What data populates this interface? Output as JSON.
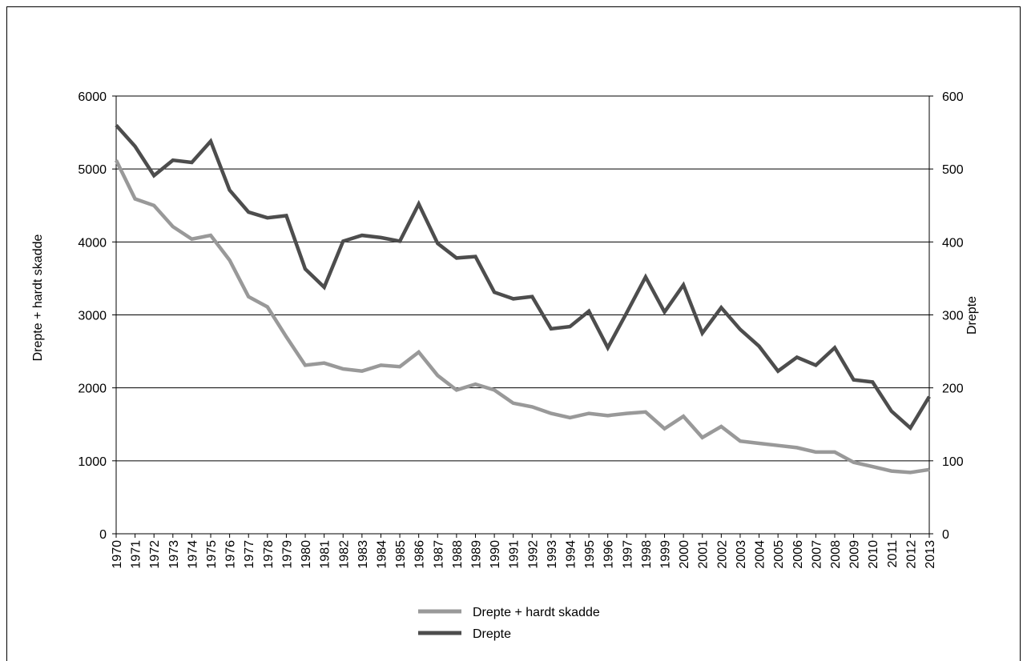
{
  "chart_data": {
    "type": "line",
    "x": [
      "1970",
      "1971",
      "1972",
      "1973",
      "1974",
      "1975",
      "1976",
      "1977",
      "1978",
      "1979",
      "1980",
      "1981",
      "1982",
      "1983",
      "1984",
      "1985",
      "1986",
      "1987",
      "1988",
      "1989",
      "1990",
      "1991",
      "1992",
      "1993",
      "1994",
      "1995",
      "1996",
      "1997",
      "1998",
      "1999",
      "2000",
      "2001",
      "2002",
      "2003",
      "2004",
      "2005",
      "2006",
      "2007",
      "2008",
      "2009",
      "2010",
      "2011",
      "2012",
      "2013"
    ],
    "series": [
      {
        "name": "Drepte + hardt skadde",
        "axis": "left",
        "color": "#999999",
        "values": [
          5120,
          4590,
          4500,
          4210,
          4040,
          4090,
          3750,
          3250,
          3110,
          2700,
          2310,
          2340,
          2260,
          2230,
          2310,
          2290,
          2490,
          2170,
          1970,
          2050,
          1970,
          1790,
          1740,
          1650,
          1590,
          1650,
          1620,
          1650,
          1670,
          1440,
          1610,
          1320,
          1470,
          1270,
          1240,
          1210,
          1180,
          1120,
          1120,
          980,
          920,
          860,
          840,
          880
        ]
      },
      {
        "name": "Drepte",
        "axis": "right",
        "color": "#4d4d4d",
        "values": [
          560,
          531,
          491,
          512,
          509,
          538,
          471,
          441,
          433,
          436,
          363,
          338,
          401,
          409,
          406,
          401,
          452,
          398,
          378,
          380,
          331,
          322,
          325,
          281,
          284,
          305,
          255,
          303,
          352,
          304,
          341,
          275,
          310,
          280,
          257,
          223,
          242,
          231,
          255,
          211,
          208,
          168,
          145,
          188
        ]
      }
    ],
    "y_left": {
      "label": "Drepte + hardt skadde",
      "min": 0,
      "max": 6000,
      "ticks": [
        "0",
        "1000",
        "2000",
        "3000",
        "4000",
        "5000",
        "6000"
      ]
    },
    "y_right": {
      "label": "Drepte",
      "min": 0,
      "max": 600,
      "ticks": [
        "0",
        "100",
        "200",
        "300",
        "400",
        "500",
        "600"
      ]
    },
    "grid": true,
    "legend": "bottom-center"
  }
}
